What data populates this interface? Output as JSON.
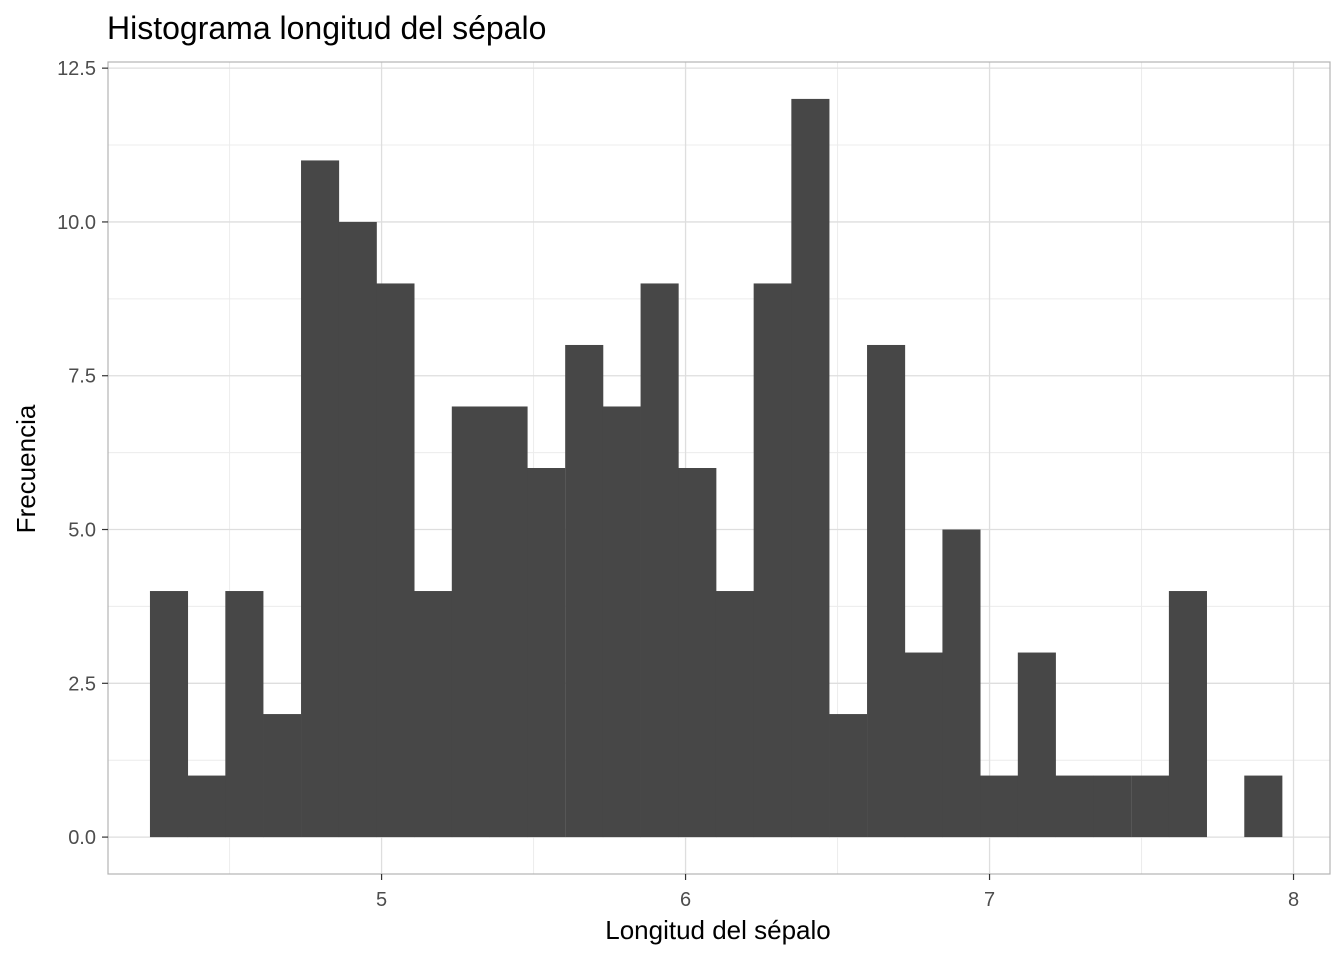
{
  "chart_data": {
    "type": "bar",
    "title": "Histograma longitud del sépalo",
    "xlabel": "Longitud del sépalo",
    "ylabel": "Frecuencia",
    "bin_width": 0.124,
    "bin_centers": [
      4.3,
      4.424,
      4.548,
      4.672,
      4.797,
      4.921,
      5.045,
      5.169,
      5.293,
      5.417,
      5.541,
      5.666,
      5.79,
      5.914,
      6.038,
      6.162,
      6.286,
      6.41,
      6.534,
      6.659,
      6.783,
      6.907,
      7.031,
      7.155,
      7.279,
      7.403,
      7.528,
      7.652,
      7.776,
      7.9
    ],
    "values": [
      4,
      1,
      4,
      2,
      11,
      10,
      9,
      4,
      7,
      7,
      6,
      8,
      7,
      9,
      6,
      4,
      9,
      12,
      2,
      8,
      3,
      5,
      1,
      3,
      1,
      1,
      1,
      4,
      0,
      1
    ],
    "xlim": [
      4.1,
      8.12
    ],
    "ylim": [
      -0.6,
      12.6
    ],
    "x_ticks": [
      5,
      6,
      7,
      8
    ],
    "x_tick_labels": [
      "5",
      "6",
      "7",
      "8"
    ],
    "y_ticks": [
      0,
      2.5,
      5,
      7.5,
      10,
      12.5
    ],
    "y_tick_labels": [
      "0.0",
      "2.5",
      "5.0",
      "7.5",
      "10.0",
      "12.5"
    ],
    "grid": true,
    "colors": {
      "bar_fill": "#474747",
      "grid_major": "#dedede",
      "grid_minor": "#ececec",
      "panel_border": "#b3b3b3",
      "tick_text": "#4d4d4d"
    }
  }
}
